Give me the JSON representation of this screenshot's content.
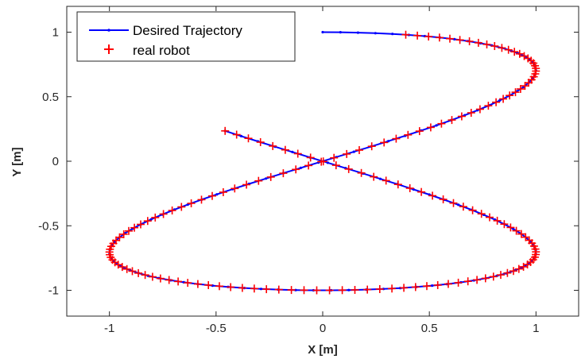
{
  "chart_data": {
    "type": "line",
    "xlabel": "X [m]",
    "ylabel": "Y [m]",
    "xlim": [
      -1.2,
      1.2
    ],
    "ylim": [
      -1.2,
      1.2
    ],
    "xticks": [
      -1,
      -0.5,
      0,
      0.5,
      1
    ],
    "xtick_labels": [
      "-1",
      "-0.5",
      "0",
      "0.5",
      "1"
    ],
    "yticks": [
      -1,
      -0.5,
      0,
      0.5,
      1
    ],
    "ytick_labels": [
      "-1",
      "-0.5",
      "0",
      "0.5",
      "1"
    ],
    "grid": false,
    "legend_position": "top-left",
    "series": [
      {
        "name": "Desired Trajectory",
        "style": "line with dot markers",
        "color": "#0000FF",
        "parametric": "x = sin(t), y = cos(0.5 t)",
        "t_range": [
          0,
          9.9
        ],
        "points": 120
      },
      {
        "name": "real robot",
        "style": "plus markers",
        "color": "#FF0000",
        "parametric": "x = sin(t), y = cos(0.5 t)",
        "t_range": [
          0.4,
          9.9
        ],
        "points": 160
      }
    ]
  }
}
